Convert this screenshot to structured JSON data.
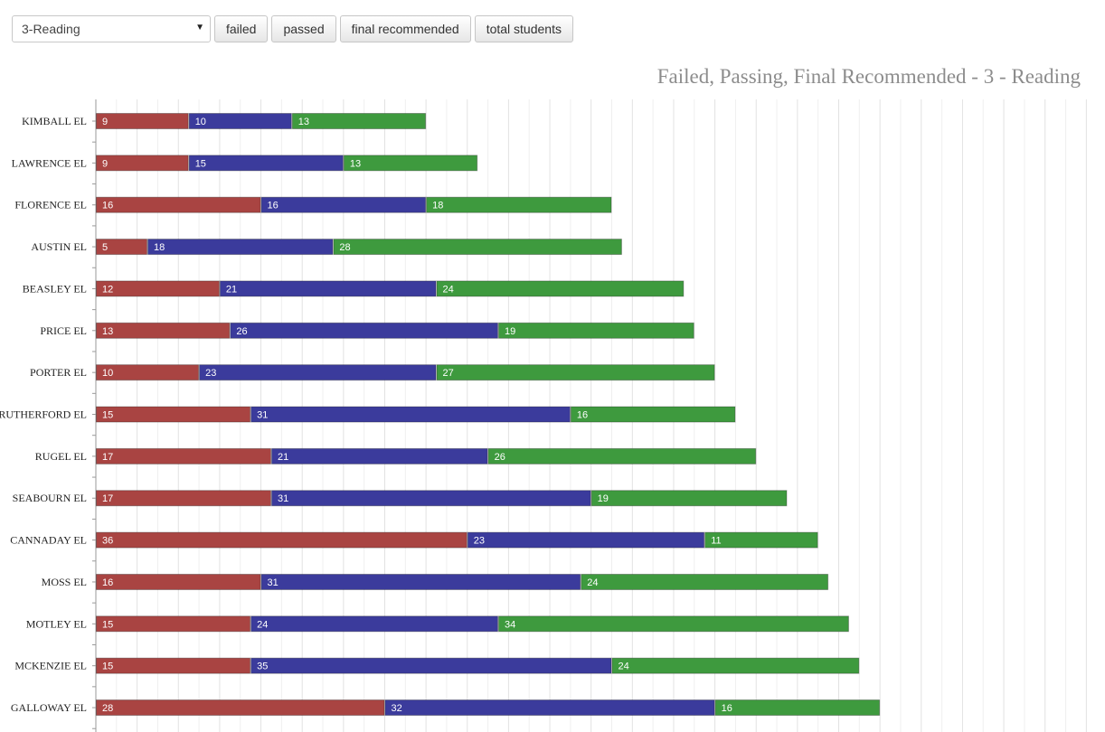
{
  "controls": {
    "subject_select": {
      "value": "3-Reading"
    },
    "buttons": [
      "failed",
      "passed",
      "final recommended",
      "total students"
    ]
  },
  "chart_data": {
    "type": "bar",
    "orientation": "horizontal",
    "stacked": true,
    "title": "Failed, Passing, Final Recommended - 3 - Reading",
    "categories": [
      "KIMBALL EL",
      "LAWRENCE EL",
      "FLORENCE EL",
      "AUSTIN EL",
      "BEASLEY EL",
      "PRICE EL",
      "PORTER EL",
      "RUTHERFORD EL",
      "RUGEL EL",
      "SEABOURN EL",
      "CANNADAY EL",
      "MOSS EL",
      "MOTLEY EL",
      "MCKENZIE EL",
      "GALLOWAY EL"
    ],
    "series": [
      {
        "values": [
          9,
          9,
          16,
          5,
          12,
          13,
          10,
          15,
          17,
          17,
          36,
          16,
          15,
          15,
          28
        ],
        "color": "#a94442"
      },
      {
        "values": [
          10,
          15,
          16,
          18,
          21,
          26,
          23,
          31,
          21,
          31,
          23,
          31,
          24,
          35,
          32
        ],
        "color": "#3b3b9c"
      },
      {
        "values": [
          13,
          13,
          18,
          28,
          24,
          19,
          27,
          16,
          26,
          19,
          11,
          24,
          34,
          24,
          16
        ],
        "color": "#3e9a3e"
      }
    ],
    "xlim": [
      0,
      96
    ],
    "grid": true,
    "data_labels": true
  }
}
